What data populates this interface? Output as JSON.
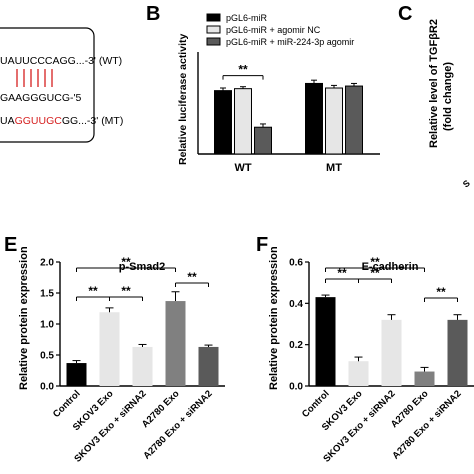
{
  "panels": {
    "B": "B",
    "C": "C",
    "E": "E",
    "F": "F"
  },
  "sequence_box": {
    "line1": "UAUUCCCAGG...-3' (WT)",
    "line2": "GAAGGGUCG-'5",
    "line3_prefix": "UA",
    "line3_highlight": "GGUUGC",
    "line3_suffix": "GG...-3' (MT)",
    "highlight_color": "#d62020"
  },
  "panel_c": {
    "ylabel_line1": "Relative level of TGFβR2",
    "ylabel_line2": "(fold change)",
    "cut_tick": "S"
  },
  "chart_data": [
    {
      "type": "bar",
      "panel": "B",
      "categories": [
        "WT",
        "MT"
      ],
      "series": [
        {
          "name": "pGL6-miR",
          "values": [
            0.97,
            1.08
          ],
          "errors": [
            0.04,
            0.05
          ],
          "color": "#000000"
        },
        {
          "name": "pGL6-miR + agomir NC",
          "values": [
            1.0,
            1.01
          ],
          "errors": [
            0.03,
            0.04
          ],
          "color": "#e6e6e6"
        },
        {
          "name": "pGL6-miR + miR-224-3p agomir",
          "values": [
            0.41,
            1.04
          ],
          "errors": [
            0.05,
            0.04
          ],
          "color": "#5a5a5a"
        }
      ],
      "ylabel": "Relative luciferase activity",
      "ylim": [
        0,
        1.5
      ],
      "legend": "top",
      "annotations": [
        {
          "text": "**",
          "between": [
            "WT:pGL6-miR",
            "WT:pGL6-miR + miR-224-3p agomir"
          ]
        }
      ]
    },
    {
      "type": "bar",
      "panel": "E",
      "title": "p-Smad2",
      "categories": [
        "Control",
        "SKOV3 Exo",
        "SKOV3 Exo + siRNA2",
        "A2780 Exo",
        "A2780 Exo + siRNA2"
      ],
      "values": [
        0.37,
        1.19,
        0.63,
        1.37,
        0.63
      ],
      "errors": [
        0.04,
        0.07,
        0.04,
        0.15,
        0.03
      ],
      "colors": [
        "#000000",
        "#e6e6e6",
        "#e6e6e6",
        "#808080",
        "#5a5a5a"
      ],
      "ylabel": "Relative protein expression",
      "ylim": [
        0.0,
        2.0
      ],
      "yticks": [
        "0.0",
        "0.5",
        "1.0",
        "1.5",
        "2.0"
      ],
      "annotations": [
        {
          "text": "**",
          "from": "Control",
          "to": "SKOV3 Exo"
        },
        {
          "text": "**",
          "from": "SKOV3 Exo",
          "to": "SKOV3 Exo + siRNA2"
        },
        {
          "text": "**",
          "from": "A2780 Exo",
          "to": "A2780 Exo + siRNA2"
        },
        {
          "text": "**",
          "from": "Control",
          "to": "A2780 Exo"
        }
      ]
    },
    {
      "type": "bar",
      "panel": "F",
      "title": "E-cadherin",
      "categories": [
        "Control",
        "SKOV3 Exo",
        "SKOV3 Exo + siRNA2",
        "A2780 Exo",
        "A2780 Exo + siRNA2"
      ],
      "values": [
        0.43,
        0.12,
        0.32,
        0.07,
        0.32
      ],
      "errors": [
        0.01,
        0.02,
        0.025,
        0.02,
        0.025
      ],
      "colors": [
        "#000000",
        "#e6e6e6",
        "#e6e6e6",
        "#808080",
        "#5a5a5a"
      ],
      "ylabel": "Relative protein expression",
      "ylim": [
        0.0,
        0.6
      ],
      "yticks": [
        "0.0",
        "0.2",
        "0.4",
        "0.6"
      ],
      "annotations": [
        {
          "text": "**",
          "from": "Control",
          "to": "SKOV3 Exo"
        },
        {
          "text": "**",
          "from": "SKOV3 Exo",
          "to": "SKOV3 Exo + siRNA2"
        },
        {
          "text": "**",
          "from": "A2780 Exo",
          "to": "A2780 Exo + siRNA2"
        },
        {
          "text": "**",
          "from": "Control",
          "to": "A2780 Exo"
        }
      ]
    }
  ]
}
